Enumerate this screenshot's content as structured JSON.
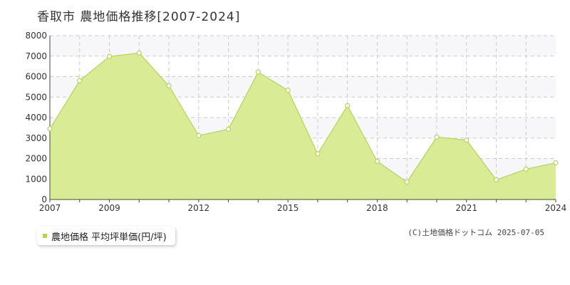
{
  "header": {
    "title": "香取市 農地価格推移[2007-2024]"
  },
  "legend": {
    "label": "農地価格 平均坪単価(円/坪)"
  },
  "footer": {
    "copyright": "(C)土地価格ドットコム 2025-07-05"
  },
  "colors": {
    "fill": "#d9ec95",
    "line": "#b5d64b",
    "band": "#f7f6f9",
    "grid": "#cccccc",
    "axis": "#444444"
  },
  "chart_data": {
    "type": "area",
    "x": [
      2007,
      2008,
      2009,
      2010,
      2011,
      2012,
      2013,
      2014,
      2015,
      2016,
      2017,
      2018,
      2019,
      2020,
      2021,
      2022,
      2023,
      2024
    ],
    "series": [
      {
        "name": "農地価格 平均坪単価(円/坪)",
        "values": [
          3450,
          5800,
          6980,
          7150,
          5550,
          3120,
          3430,
          6220,
          5330,
          2230,
          4580,
          1860,
          850,
          3050,
          2900,
          960,
          1480,
          1790
        ]
      }
    ],
    "x_tick_labels": [
      "2007",
      "2009",
      "2012",
      "2015",
      "2018",
      "2021",
      "2024"
    ],
    "y_tick_labels": [
      "0",
      "1000",
      "2000",
      "3000",
      "4000",
      "5000",
      "6000",
      "7000",
      "8000"
    ],
    "ylim": [
      0,
      8000
    ],
    "xlim": [
      2007,
      2024
    ],
    "grid": true,
    "legend_position": "bottom-left"
  }
}
